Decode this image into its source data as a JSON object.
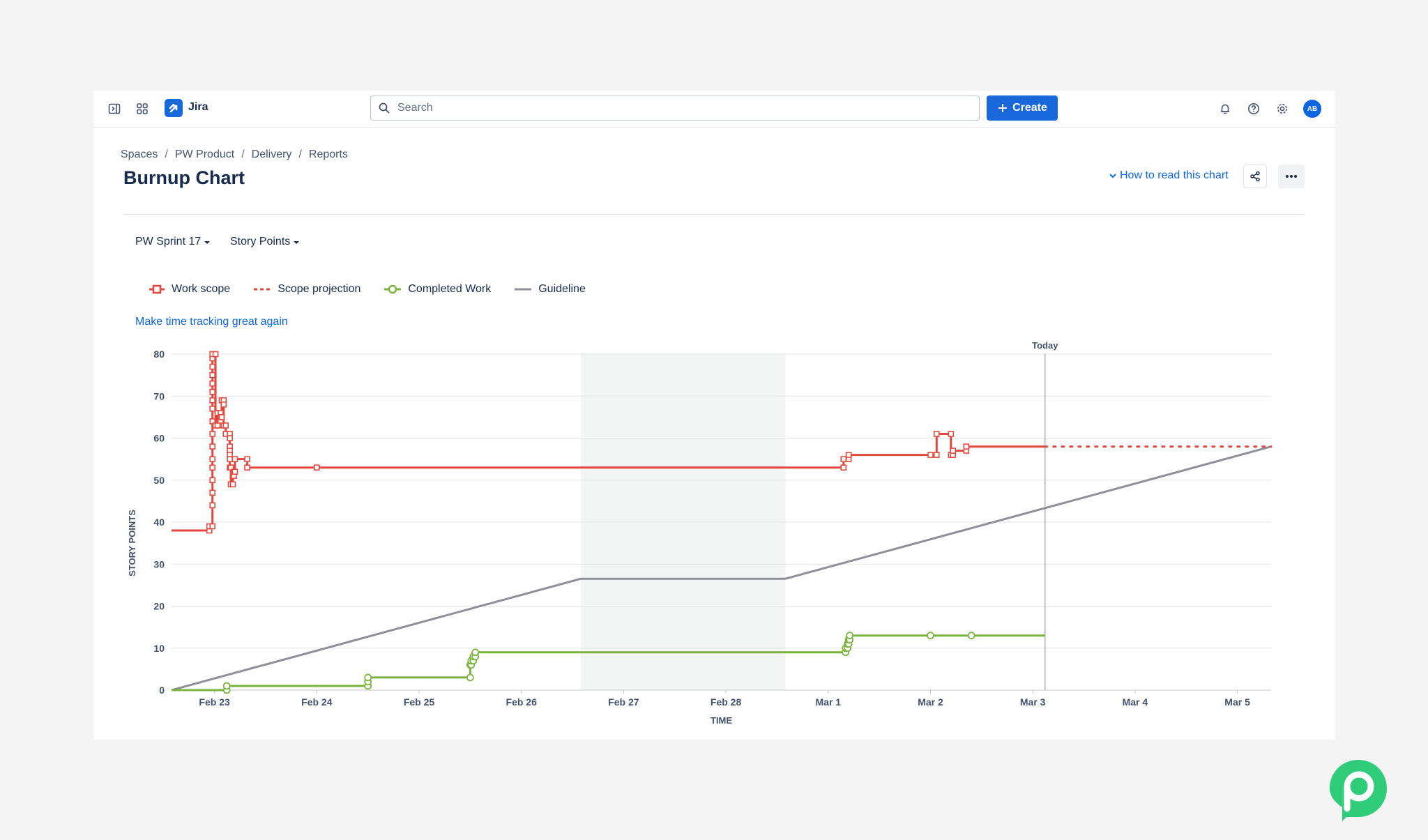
{
  "topnav": {
    "app_name": "Jira",
    "search_placeholder": "Search",
    "create_label": "Create",
    "avatar_initials": "AB",
    "icons": [
      "sidebar-toggle-icon",
      "app-switcher-icon",
      "notifications-icon",
      "help-icon",
      "settings-icon"
    ]
  },
  "breadcrumb": [
    "Spaces",
    "PW Product",
    "Delivery",
    "Reports"
  ],
  "page": {
    "title": "Burnup Chart",
    "how_to_read": "How to read this chart"
  },
  "filters": {
    "sprint": "PW Sprint 17",
    "estimation": "Story Points"
  },
  "legend": {
    "work_scope": "Work scope",
    "scope_projection": "Scope projection",
    "completed_work": "Completed Work",
    "guideline": "Guideline"
  },
  "time_tracking_link": "Make time tracking great again",
  "colors": {
    "work_scope": "#e2483d",
    "completed_work": "#7ab33d",
    "guideline": "#8f8e99",
    "accent": "#1868db",
    "non_working": "#f3f5f4"
  },
  "chart_data": {
    "type": "line",
    "title": "",
    "xlabel": "TIME",
    "ylabel": "STORY POINTS",
    "x_ticks": [
      "Feb 23",
      "Feb 24",
      "Feb 25",
      "Feb 26",
      "Feb 27",
      "Feb 28",
      "Mar 1",
      "Mar 2",
      "Mar 3",
      "Mar 4",
      "Mar 5"
    ],
    "y_ticks": [
      0,
      10,
      20,
      30,
      40,
      50,
      60,
      70,
      80
    ],
    "xlim": [
      -0.42,
      10.33
    ],
    "ylim": [
      0,
      80
    ],
    "x_unit": "days from Feb 23",
    "today_label": "Today",
    "today_x": 8.12,
    "non_working_period": [
      3.58,
      5.58
    ],
    "grid": true,
    "legend_position": "top-left",
    "series": [
      {
        "name": "Work scope",
        "style": "step",
        "marker": "square",
        "points": [
          [
            -0.42,
            38
          ],
          [
            -0.05,
            38
          ],
          [
            -0.05,
            39
          ],
          [
            -0.02,
            39
          ],
          [
            -0.02,
            44
          ],
          [
            -0.02,
            47
          ],
          [
            -0.02,
            50
          ],
          [
            -0.02,
            53
          ],
          [
            -0.02,
            55
          ],
          [
            -0.02,
            58
          ],
          [
            -0.02,
            61
          ],
          [
            -0.02,
            64
          ],
          [
            -0.02,
            67
          ],
          [
            -0.02,
            69
          ],
          [
            -0.02,
            71
          ],
          [
            -0.02,
            73
          ],
          [
            -0.02,
            75
          ],
          [
            -0.02,
            77
          ],
          [
            -0.02,
            79
          ],
          [
            -0.02,
            80
          ],
          [
            0.01,
            80
          ],
          [
            0.01,
            63
          ],
          [
            0.03,
            63
          ],
          [
            0.03,
            66
          ],
          [
            0.06,
            66
          ],
          [
            0.06,
            65
          ],
          [
            0.07,
            65
          ],
          [
            0.07,
            69
          ],
          [
            0.09,
            69
          ],
          [
            0.09,
            68
          ],
          [
            0.09,
            63
          ],
          [
            0.11,
            63
          ],
          [
            0.11,
            61
          ],
          [
            0.15,
            61
          ],
          [
            0.15,
            60
          ],
          [
            0.15,
            58
          ],
          [
            0.15,
            57
          ],
          [
            0.15,
            56
          ],
          [
            0.15,
            55
          ],
          [
            0.15,
            53
          ],
          [
            0.16,
            53
          ],
          [
            0.16,
            49
          ],
          [
            0.18,
            49
          ],
          [
            0.18,
            51
          ],
          [
            0.19,
            51
          ],
          [
            0.19,
            52
          ],
          [
            0.2,
            52
          ],
          [
            0.2,
            55
          ],
          [
            0.32,
            55
          ],
          [
            0.32,
            53
          ],
          [
            1.0,
            53
          ],
          [
            6.15,
            53
          ],
          [
            6.15,
            55
          ],
          [
            6.2,
            55
          ],
          [
            6.2,
            56
          ],
          [
            7.0,
            56
          ],
          [
            7.06,
            56
          ],
          [
            7.06,
            61
          ],
          [
            7.2,
            61
          ],
          [
            7.2,
            56
          ],
          [
            7.22,
            56
          ],
          [
            7.22,
            57
          ],
          [
            7.35,
            57
          ],
          [
            7.35,
            58
          ],
          [
            8.12,
            58
          ]
        ]
      },
      {
        "name": "Scope projection",
        "style": "dotted",
        "points": [
          [
            8.12,
            58
          ],
          [
            10.33,
            58
          ]
        ]
      },
      {
        "name": "Completed Work",
        "style": "step",
        "marker": "circle",
        "points": [
          [
            -0.42,
            0
          ],
          [
            0.12,
            0
          ],
          [
            0.12,
            1
          ],
          [
            1.5,
            1
          ],
          [
            1.5,
            2
          ],
          [
            1.5,
            3
          ],
          [
            2.5,
            3
          ],
          [
            2.5,
            6
          ],
          [
            2.51,
            6
          ],
          [
            2.51,
            7
          ],
          [
            2.53,
            7
          ],
          [
            2.53,
            8
          ],
          [
            2.55,
            8
          ],
          [
            2.55,
            9
          ],
          [
            6.17,
            9
          ],
          [
            6.17,
            10
          ],
          [
            6.19,
            10
          ],
          [
            6.19,
            11
          ],
          [
            6.2,
            11
          ],
          [
            6.2,
            12
          ],
          [
            6.21,
            12
          ],
          [
            6.21,
            13
          ],
          [
            7.0,
            13
          ],
          [
            7.4,
            13
          ],
          [
            8.12,
            13
          ]
        ]
      },
      {
        "name": "Guideline",
        "style": "line",
        "points": [
          [
            -0.42,
            0
          ],
          [
            3.58,
            26.5
          ],
          [
            5.58,
            26.5
          ],
          [
            10.33,
            58
          ]
        ]
      }
    ]
  }
}
